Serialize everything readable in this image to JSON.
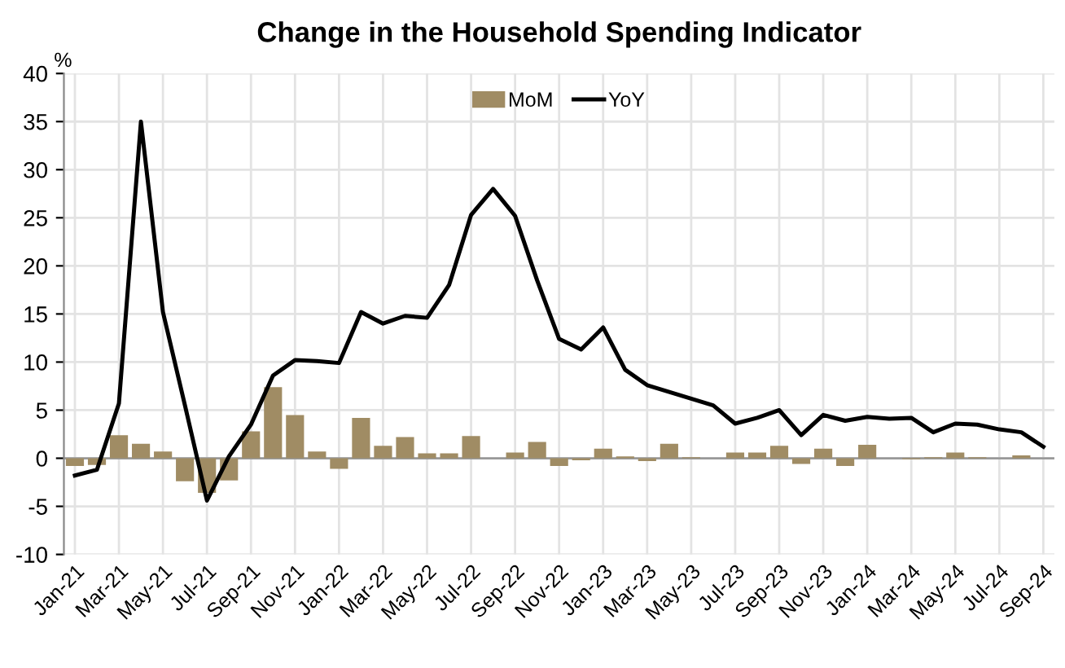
{
  "chart_data": {
    "type": "bar",
    "title": "Change in the Household Spending Indicator",
    "ylabel": "%",
    "categories": [
      "Jan-21",
      null,
      "Mar-21",
      null,
      "May-21",
      null,
      "Jul-21",
      null,
      "Sep-21",
      null,
      "Nov-21",
      null,
      "Jan-22",
      null,
      "Mar-22",
      null,
      "May-22",
      null,
      "Jul-22",
      null,
      "Sep-22",
      null,
      "Nov-22",
      null,
      "Jan-23",
      null,
      "Mar-23",
      null,
      "May-23",
      null,
      "Jul-23",
      null,
      "Sep-23",
      null,
      "Nov-23",
      null,
      "Jan-24",
      null,
      "Mar-24",
      null,
      "May-24",
      null,
      "Jul-24",
      null,
      "Sep-24"
    ],
    "series": [
      {
        "name": "MoM",
        "color": "#a08c64",
        "values": [
          -0.8,
          -0.7,
          2.4,
          1.5,
          0.7,
          -2.4,
          -3.6,
          -2.3,
          2.8,
          7.4,
          4.5,
          0.7,
          -1.1,
          4.2,
          1.3,
          2.2,
          0.5,
          0.5,
          2.3,
          0,
          0.6,
          1.7,
          -0.8,
          -0.2,
          1.0,
          0.2,
          -0.3,
          1.5,
          0.1,
          0,
          0.6,
          0.6,
          1.3,
          -0.6,
          1.0,
          -0.8,
          1.4,
          0,
          -0.1,
          0.1,
          0.6,
          0.1,
          0,
          0.3,
          0
        ]
      },
      {
        "name": "YoY",
        "type": "line",
        "color": "#000000",
        "values": [
          -1.8,
          -1.2,
          5.7,
          35,
          15.2,
          5.5,
          -4.4,
          0.2,
          3.5,
          8.6,
          10.2,
          10.1,
          9.9,
          15.2,
          14,
          14.8,
          14.6,
          18,
          25.3,
          28,
          25.2,
          18.5,
          12.4,
          11.3,
          13.6,
          9.2,
          7.6,
          6.9,
          6.2,
          5.5,
          3.6,
          4.2,
          5,
          2.4,
          4.5,
          3.9,
          4.3,
          4.1,
          4.2,
          2.7,
          3.6,
          3.5,
          3.0,
          2.7,
          1.2
        ]
      }
    ],
    "ylim": [
      -10,
      40
    ],
    "yticks": [
      -10,
      -5,
      0,
      5,
      10,
      15,
      20,
      25,
      30,
      35,
      40
    ],
    "grid": true,
    "legend": "top",
    "marker": "none",
    "line_style": "solid"
  }
}
